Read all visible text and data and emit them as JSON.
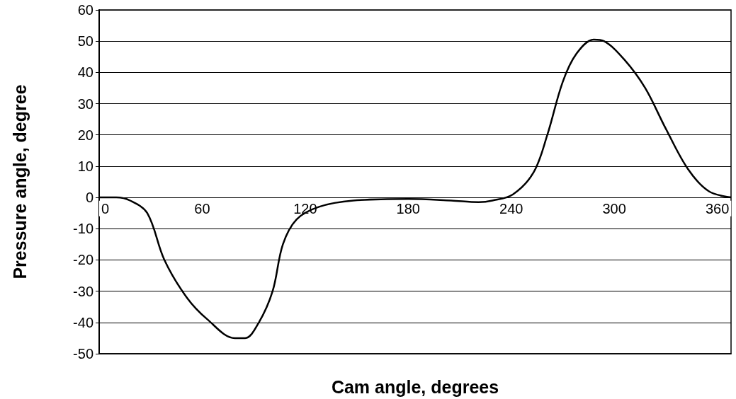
{
  "chart_data": {
    "type": "line",
    "xlabel": "Cam angle, degrees",
    "ylabel": "Pressure angle, degree",
    "x": [
      0,
      10,
      18,
      28,
      38,
      51,
      63,
      79,
      85,
      93,
      101,
      107,
      115,
      128,
      148,
      180,
      205,
      221,
      229,
      241,
      253,
      261,
      270,
      278,
      288,
      294,
      306,
      318,
      330,
      343,
      355,
      368
    ],
    "series": [
      {
        "color": "#000000",
        "values": [
          0,
          0,
          -1,
          -5,
          -20,
          -32,
          -39,
          -45,
          -45,
          -40,
          -30,
          -15,
          -7,
          -3,
          -1,
          -0.5,
          -1,
          -1.5,
          -1,
          1,
          8,
          20,
          37,
          46,
          50.5,
          50,
          44,
          35,
          22,
          9,
          2,
          0
        ]
      }
    ],
    "xlim": [
      0,
      368
    ],
    "xticks": [
      0,
      60,
      120,
      180,
      240,
      300,
      360
    ],
    "ylim": [
      -50,
      60
    ],
    "yticks": [
      -50,
      -40,
      -30,
      -20,
      -10,
      0,
      10,
      20,
      30,
      40,
      50,
      60
    ],
    "grid": "y",
    "marker": "none",
    "line_style": "solid"
  }
}
